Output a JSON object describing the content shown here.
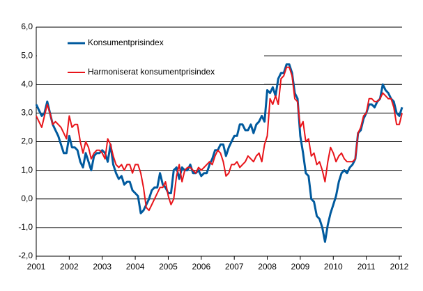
{
  "chart_data": {
    "type": "line",
    "categories": [
      "2001",
      null,
      null,
      null,
      null,
      null,
      null,
      null,
      null,
      null,
      null,
      null,
      "2002",
      null,
      null,
      null,
      null,
      null,
      null,
      null,
      null,
      null,
      null,
      null,
      "2003",
      null,
      null,
      null,
      null,
      null,
      null,
      null,
      null,
      null,
      null,
      null,
      "2004",
      null,
      null,
      null,
      null,
      null,
      null,
      null,
      null,
      null,
      null,
      null,
      "2005",
      null,
      null,
      null,
      null,
      null,
      null,
      null,
      null,
      null,
      null,
      null,
      "2006",
      null,
      null,
      null,
      null,
      null,
      null,
      null,
      null,
      null,
      null,
      null,
      "2007",
      null,
      null,
      null,
      null,
      null,
      null,
      null,
      null,
      null,
      null,
      null,
      "2008",
      null,
      null,
      null,
      null,
      null,
      null,
      null,
      null,
      null,
      null,
      null,
      "2009",
      null,
      null,
      null,
      null,
      null,
      null,
      null,
      null,
      null,
      null,
      null,
      "2010",
      null,
      null,
      null,
      null,
      null,
      null,
      null,
      null,
      null,
      null,
      null,
      "2011",
      null,
      null,
      null,
      null,
      null,
      null,
      null,
      null,
      null,
      null,
      null,
      "2012",
      null
    ],
    "series": [
      {
        "name": "Konsumentprisindex",
        "color": "#005a9e",
        "width": 3,
        "values": [
          3.3,
          3.1,
          2.9,
          3.0,
          3.4,
          3.0,
          2.6,
          2.4,
          2.2,
          1.9,
          1.6,
          1.6,
          2.2,
          1.8,
          1.8,
          1.7,
          1.3,
          1.1,
          1.6,
          1.3,
          1.0,
          1.5,
          1.6,
          1.6,
          1.7,
          1.6,
          1.3,
          1.9,
          1.2,
          0.9,
          0.7,
          0.8,
          0.5,
          0.6,
          0.6,
          0.3,
          0.2,
          0.1,
          -0.5,
          -0.4,
          -0.2,
          0.0,
          0.3,
          0.4,
          0.4,
          0.9,
          0.5,
          0.4,
          0.2,
          0.2,
          1.0,
          1.1,
          0.7,
          1.1,
          1.0,
          1.0,
          1.2,
          0.9,
          0.9,
          1.0,
          0.8,
          0.9,
          0.9,
          1.2,
          1.4,
          1.7,
          1.7,
          1.9,
          1.9,
          1.5,
          1.8,
          2.0,
          2.2,
          2.2,
          2.6,
          2.6,
          2.4,
          2.4,
          2.6,
          2.3,
          2.6,
          2.7,
          2.9,
          2.7,
          3.8,
          3.7,
          3.9,
          3.6,
          4.2,
          4.4,
          4.4,
          4.7,
          4.7,
          4.4,
          3.7,
          3.5,
          2.2,
          1.6,
          0.9,
          0.8,
          0.0,
          -0.1,
          -0.6,
          -0.7,
          -1.0,
          -1.5,
          -0.9,
          -0.5,
          -0.2,
          0.1,
          0.6,
          0.9,
          1.0,
          0.9,
          1.1,
          1.2,
          1.4,
          2.3,
          2.4,
          2.8,
          3.0,
          3.3,
          3.3,
          3.2,
          3.4,
          3.5,
          4.0,
          3.8,
          3.7,
          3.5,
          3.4,
          3.0,
          2.9,
          3.2
        ]
      },
      {
        "name": "Harmoniserat konsumentprisindex",
        "color": "#e8141a",
        "width": 2,
        "values": [
          2.9,
          2.7,
          2.5,
          2.9,
          3.3,
          3.0,
          2.6,
          2.7,
          2.6,
          2.5,
          2.3,
          2.1,
          2.9,
          2.5,
          2.6,
          2.6,
          2.0,
          1.6,
          2.0,
          1.8,
          1.4,
          1.6,
          1.7,
          1.7,
          1.6,
          1.4,
          2.1,
          1.9,
          1.5,
          1.2,
          1.1,
          1.2,
          1.0,
          1.2,
          1.2,
          0.9,
          1.2,
          1.2,
          0.9,
          0.4,
          -0.3,
          -0.4,
          -0.2,
          0.0,
          0.2,
          0.4,
          0.4,
          0.6,
          0.1,
          -0.2,
          0.0,
          0.8,
          1.2,
          0.6,
          1.0,
          1.1,
          1.1,
          1.0,
          0.9,
          1.1,
          1.0,
          1.1,
          1.2,
          1.3,
          1.2,
          1.5,
          1.7,
          1.6,
          1.3,
          0.8,
          0.9,
          1.2,
          1.2,
          1.3,
          1.1,
          1.2,
          1.3,
          1.5,
          1.4,
          1.3,
          1.5,
          1.6,
          1.3,
          1.9,
          2.2,
          3.5,
          3.3,
          3.6,
          3.3,
          4.2,
          4.3,
          4.6,
          4.6,
          4.3,
          3.5,
          3.4,
          2.5,
          2.7,
          2.0,
          2.1,
          1.5,
          1.6,
          1.2,
          1.3,
          1.0,
          0.6,
          1.3,
          1.8,
          1.6,
          1.3,
          1.5,
          1.6,
          1.4,
          1.3,
          1.3,
          1.3,
          1.4,
          2.3,
          2.5,
          2.9,
          3.0,
          3.5,
          3.5,
          3.4,
          3.4,
          3.5,
          3.7,
          3.6,
          3.5,
          3.5,
          3.2,
          2.6,
          2.6,
          3.0
        ]
      }
    ],
    "ylim": [
      -2,
      6
    ],
    "yticks": [
      {
        "value": -2,
        "label": "-2,0"
      },
      {
        "value": -1,
        "label": "-1,0"
      },
      {
        "value": 0,
        "label": "0,0"
      },
      {
        "value": 1,
        "label": "1,0"
      },
      {
        "value": 2,
        "label": "2,0"
      },
      {
        "value": 3,
        "label": "3,0"
      },
      {
        "value": 4,
        "label": "4,0"
      },
      {
        "value": 5,
        "label": "5,0"
      },
      {
        "value": 6,
        "label": "6,0"
      }
    ],
    "grid": true
  }
}
